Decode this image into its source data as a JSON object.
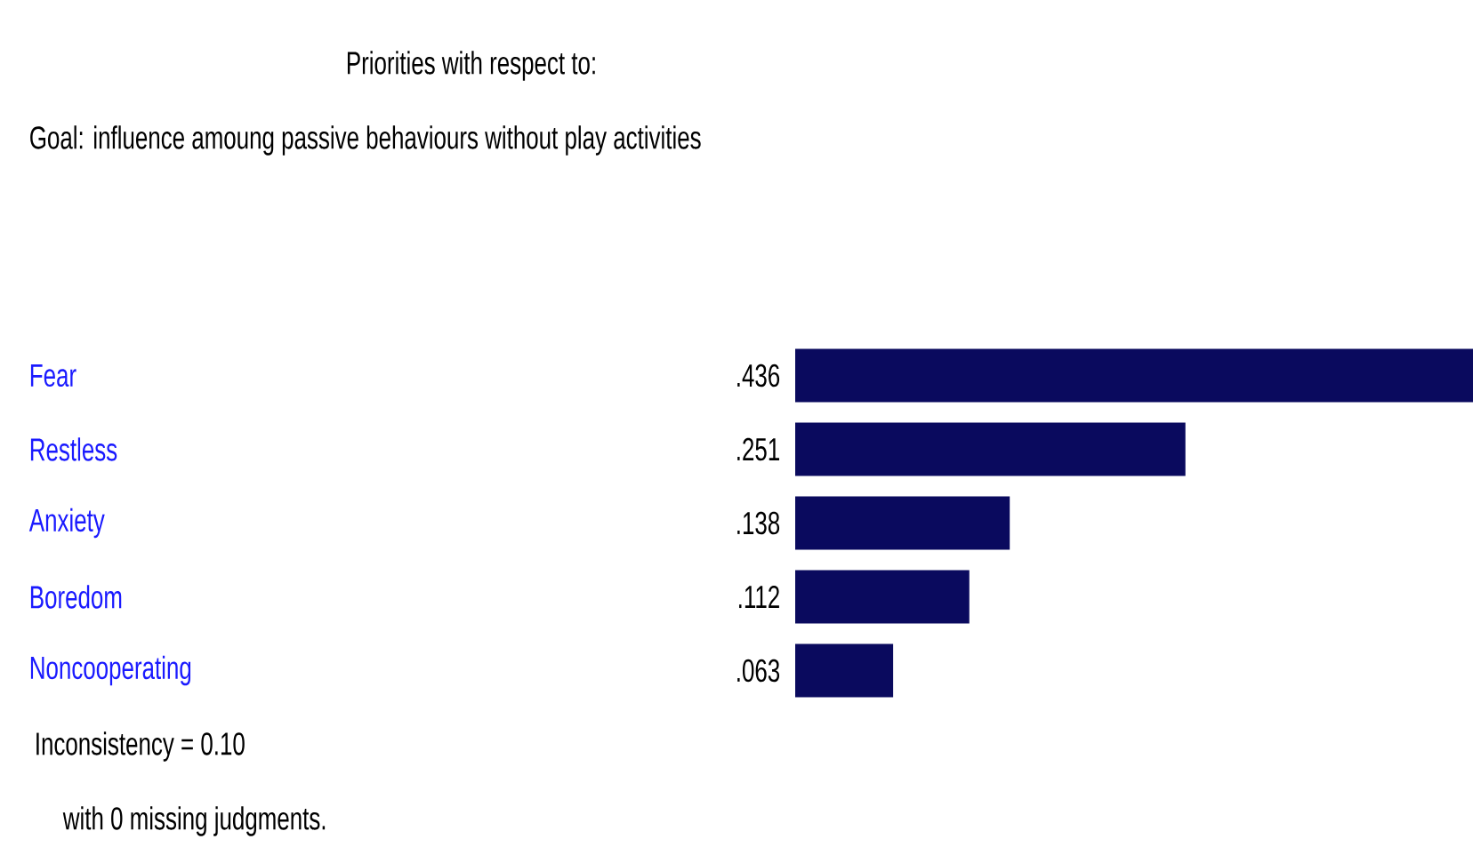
{
  "chart_data": {
    "type": "bar",
    "orientation": "horizontal",
    "title": "Priorities with respect to:",
    "subtitle": "Goal: influence amoung passive behaviours without play activities",
    "categories": [
      "Fear",
      "Restless",
      "Anxiety",
      "Boredom",
      "Noncooperating"
    ],
    "values": [
      0.436,
      0.251,
      0.138,
      0.112,
      0.063
    ],
    "value_labels": [
      ".436",
      ".251",
      ".138",
      ".112",
      ".063"
    ],
    "color": "#0a0a5e",
    "annotations": [
      "Inconsistency = 0.10",
      "with 0  missing judgments."
    ]
  }
}
